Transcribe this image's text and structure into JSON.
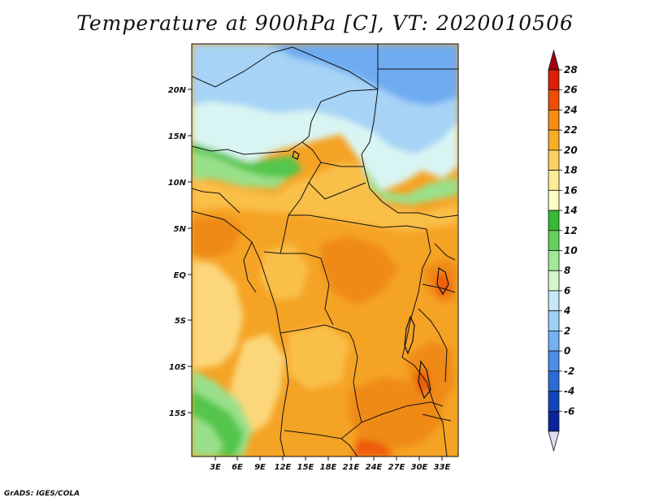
{
  "title": "Temperature at 900hPa [C], VT: 2020010506",
  "credit": "GrADS: IGES/COLA",
  "map": {
    "lat_labels": [
      "20N",
      "15N",
      "10N",
      "5N",
      "EQ",
      "5S",
      "10S",
      "15S"
    ],
    "lon_labels": [
      "3E",
      "6E",
      "9E",
      "12E",
      "15E",
      "18E",
      "21E",
      "24E",
      "27E",
      "30E",
      "33E"
    ]
  },
  "colorbar": {
    "levels": [
      "28",
      "26",
      "24",
      "22",
      "20",
      "18",
      "16",
      "14",
      "12",
      "10",
      "8",
      "6",
      "4",
      "2",
      "0",
      "-2",
      "-4",
      "-6"
    ],
    "colors": [
      "#a0000e",
      "#dc1f05",
      "#ee4d05",
      "#f78c0f",
      "#f9ad26",
      "#fcd060",
      "#fdeb95",
      "#fefcc3",
      "#34bb33",
      "#63d15c",
      "#a2e896",
      "#d4f6ca",
      "#c5e7f7",
      "#9fd1f7",
      "#72b1f2",
      "#4b8fe6",
      "#2a6cd5",
      "#1046bb",
      "#0a2398",
      "#dcdcf2"
    ]
  },
  "colors": {
    "hot": "#ee5a0a",
    "warm": "#f5a325",
    "mild": "#f9c04a",
    "light": "#fbd77a",
    "green": "#53c64c",
    "ltgreen": "#9ae08a",
    "cyan": "#d9f5f3",
    "ltblue": "#a6d3f6",
    "blue": "#6eabf0",
    "border": "#111111"
  }
}
